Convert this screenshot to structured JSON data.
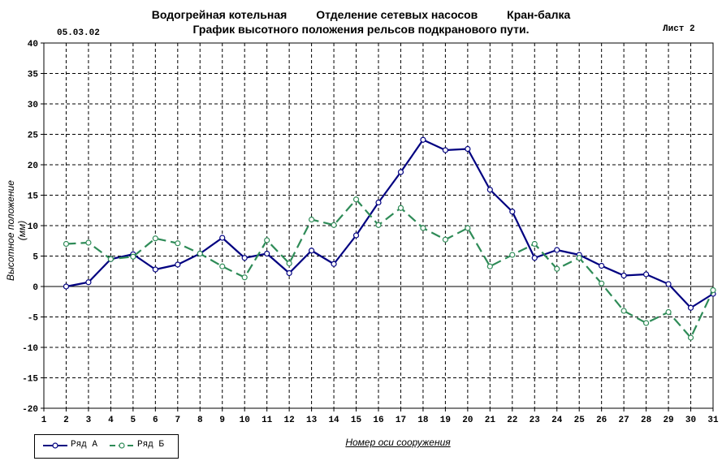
{
  "header": {
    "line1": [
      "Водогрейная котельная",
      "Отделение сетевых насосов",
      "Кран-балка"
    ],
    "line2": "График высотного положения рельсов подкранового пути.",
    "date": "05.03.02",
    "sheet": "Лист 2"
  },
  "chart_data": {
    "type": "line",
    "title": "График высотного положения рельсов подкранового пути.",
    "xlabel": "Номер оси сооружения",
    "ylabel": "Высотное положение (мм)",
    "x": [
      1,
      2,
      3,
      4,
      5,
      6,
      7,
      8,
      9,
      10,
      11,
      12,
      13,
      14,
      15,
      16,
      17,
      18,
      19,
      20,
      21,
      22,
      23,
      24,
      25,
      26,
      27,
      28,
      29,
      30,
      31
    ],
    "xlim": [
      1,
      31
    ],
    "ylim": [
      -20,
      40
    ],
    "yticks": [
      -20,
      -15,
      -10,
      -5,
      0,
      5,
      10,
      15,
      20,
      25,
      30,
      35,
      40
    ],
    "grid": true,
    "legend_position": "bottom-left",
    "series": [
      {
        "name": "Ряд А",
        "color": "#000080",
        "style": "solid",
        "x": [
          2,
          3,
          4,
          5,
          6,
          7,
          8,
          9,
          10,
          11,
          12,
          13,
          14,
          15,
          16,
          17,
          18,
          19,
          20,
          21,
          22,
          23,
          24,
          25,
          26,
          27,
          28,
          29,
          30,
          31
        ],
        "values": [
          0,
          0.7,
          4.5,
          5.3,
          2.8,
          3.6,
          5.4,
          8,
          4.7,
          5.4,
          2.2,
          5.9,
          3.7,
          8.4,
          13.8,
          18.8,
          24.1,
          22.4,
          22.6,
          15.9,
          12.3,
          4.7,
          6,
          5.2,
          3.4,
          1.8,
          2,
          0.4,
          -3.5,
          -1.2
        ]
      },
      {
        "name": "Ряд Б",
        "color": "#2e8b57",
        "style": "dashed",
        "x": [
          2,
          3,
          4,
          5,
          6,
          7,
          8,
          9,
          10,
          11,
          12,
          13,
          14,
          15,
          16,
          17,
          18,
          19,
          20,
          21,
          22,
          23,
          24,
          25,
          26,
          27,
          28,
          29,
          30,
          31
        ],
        "values": [
          7,
          7.2,
          4.5,
          4.9,
          7.9,
          7.1,
          5.4,
          3.3,
          1.5,
          7.6,
          3.8,
          11,
          10.1,
          14.3,
          10.1,
          12.9,
          9.6,
          7.7,
          9.6,
          3.3,
          5.2,
          7,
          2.9,
          4.7,
          0.5,
          -4,
          -6,
          -4.2,
          -8.4,
          -0.6
        ]
      }
    ]
  }
}
